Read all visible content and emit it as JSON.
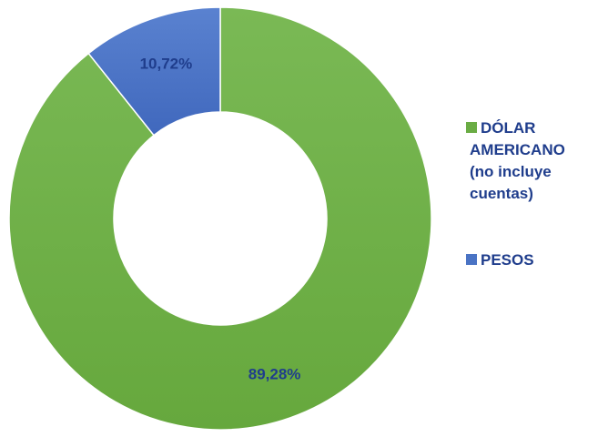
{
  "chart_data": {
    "type": "pie",
    "variant": "donut",
    "title": "",
    "slices": [
      {
        "label": "DÓLAR AMERICANO (no incluye cuentas)",
        "label_lines": [
          "DÓLAR",
          "AMERICANO",
          "(no incluye",
          "cuentas)"
        ],
        "value": 89.28,
        "display": "89,28%",
        "color": "#6aac44"
      },
      {
        "label": "PESOS",
        "label_lines": [
          "PESOS"
        ],
        "value": 10.72,
        "display": "10,72%",
        "color": "#4a73c4"
      }
    ],
    "legend_position": "right",
    "label_color": "#1f3d8c"
  }
}
